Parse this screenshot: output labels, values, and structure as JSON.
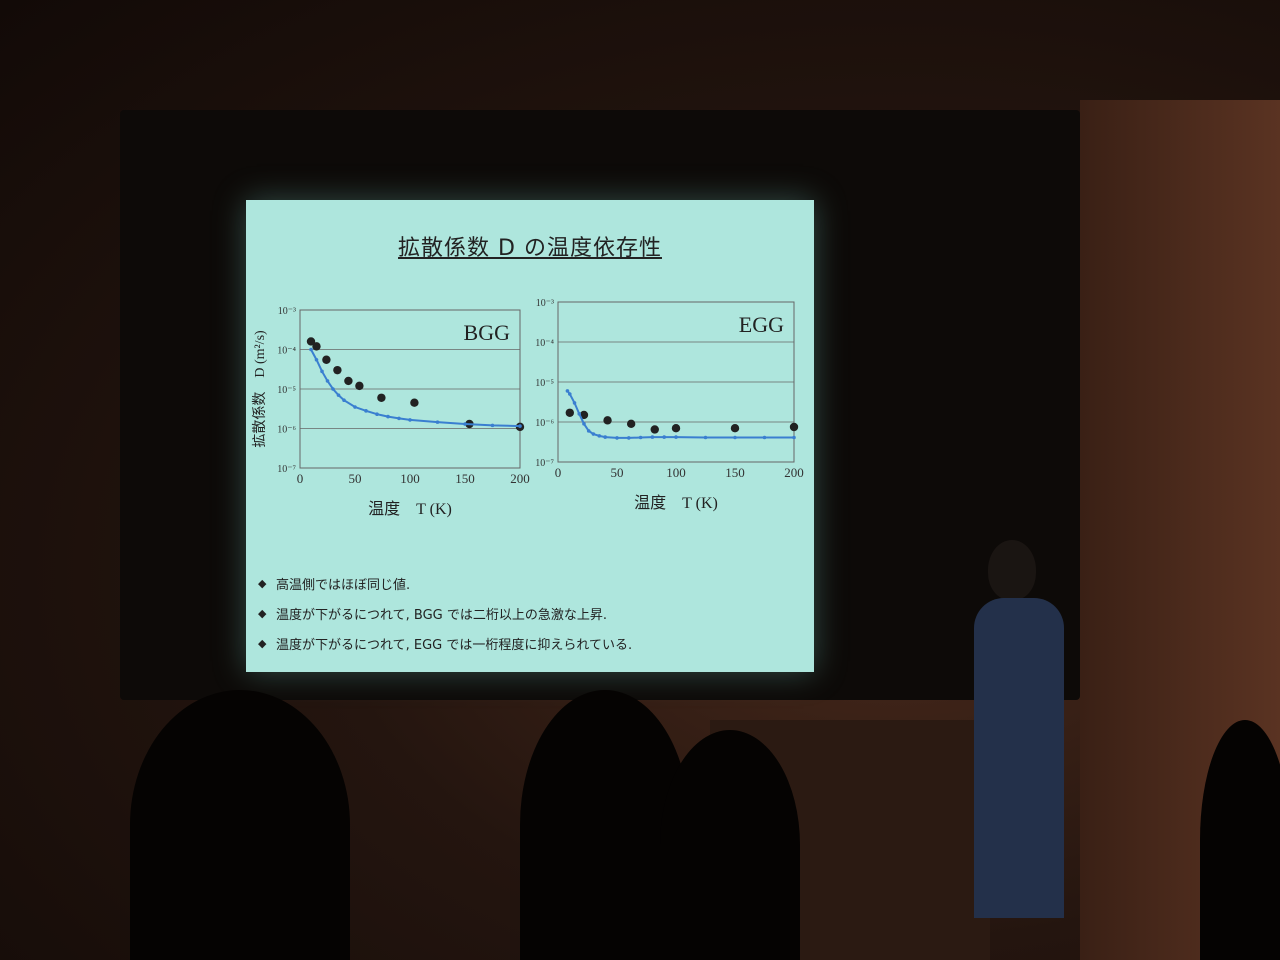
{
  "slide": {
    "title": "拡散係数 D の温度依存性",
    "bullets": [
      "高温側ではほぼ同じ値.",
      "温度が下がるにつれて, BGG では二桁以上の急激な上昇.",
      "温度が下がるにつれて, EGG では一桁程度に抑えられている."
    ],
    "bullet_mark": "◆"
  },
  "chart_data": [
    {
      "type": "scatter",
      "title": "BGG",
      "xlabel": "温度　T (K)",
      "ylabel": "拡散係数　D (m²/s)",
      "xlim": [
        0,
        200
      ],
      "ylim": [
        1e-07,
        0.001
      ],
      "yscale": "log",
      "xticks": [
        0,
        50,
        100,
        150,
        200
      ],
      "yticks": [
        "10⁻³",
        "10⁻⁴",
        "10⁻⁵",
        "10⁻⁶",
        "10⁻⁷"
      ],
      "grid": true,
      "series": [
        {
          "marker": "dot",
          "color": "#222222",
          "x": [
            10,
            15,
            24,
            34,
            44,
            54,
            74,
            104,
            154,
            200
          ],
          "y": [
            0.00016,
            0.00012,
            5.5e-05,
            3e-05,
            1.6e-05,
            1.2e-05,
            6e-06,
            4.5e-06,
            1.3e-06,
            1.1e-06
          ]
        },
        {
          "marker": "line",
          "color": "#3a7fd0",
          "x": [
            10,
            15,
            20,
            25,
            30,
            35,
            40,
            50,
            60,
            70,
            80,
            90,
            100,
            125,
            150,
            175,
            200
          ],
          "y": [
            0.0001,
            5.5e-05,
            2.8e-05,
            1.6e-05,
            1e-05,
            7e-06,
            5.2e-06,
            3.5e-06,
            2.8e-06,
            2.3e-06,
            2e-06,
            1.8e-06,
            1.65e-06,
            1.45e-06,
            1.3e-06,
            1.2e-06,
            1.15e-06
          ]
        }
      ]
    },
    {
      "type": "scatter",
      "title": "EGG",
      "xlabel": "温度　T (K)",
      "xlim": [
        0,
        200
      ],
      "ylim": [
        1e-07,
        0.001
      ],
      "yscale": "log",
      "xticks": [
        0,
        50,
        100,
        150,
        200
      ],
      "yticks": [
        "10⁻³",
        "10⁻⁴",
        "10⁻⁵",
        "10⁻⁶",
        "10⁻⁷"
      ],
      "grid": true,
      "series": [
        {
          "marker": "dot",
          "color": "#222222",
          "x": [
            10,
            22,
            42,
            62,
            82,
            100,
            150,
            200
          ],
          "y": [
            1.7e-06,
            1.5e-06,
            1.1e-06,
            9e-07,
            6.5e-07,
            7e-07,
            7e-07,
            7.5e-07
          ]
        },
        {
          "marker": "line",
          "color": "#3a7fd0",
          "x": [
            8,
            10,
            14,
            18,
            22,
            26,
            30,
            35,
            40,
            50,
            60,
            70,
            80,
            90,
            100,
            125,
            150,
            175,
            200
          ],
          "y": [
            6e-06,
            5e-06,
            3e-06,
            1.6e-06,
            9e-07,
            6e-07,
            5e-07,
            4.5e-07,
            4.2e-07,
            4e-07,
            4e-07,
            4.1e-07,
            4.2e-07,
            4.2e-07,
            4.2e-07,
            4.1e-07,
            4.1e-07,
            4.1e-07,
            4.1e-07
          ]
        }
      ]
    }
  ]
}
